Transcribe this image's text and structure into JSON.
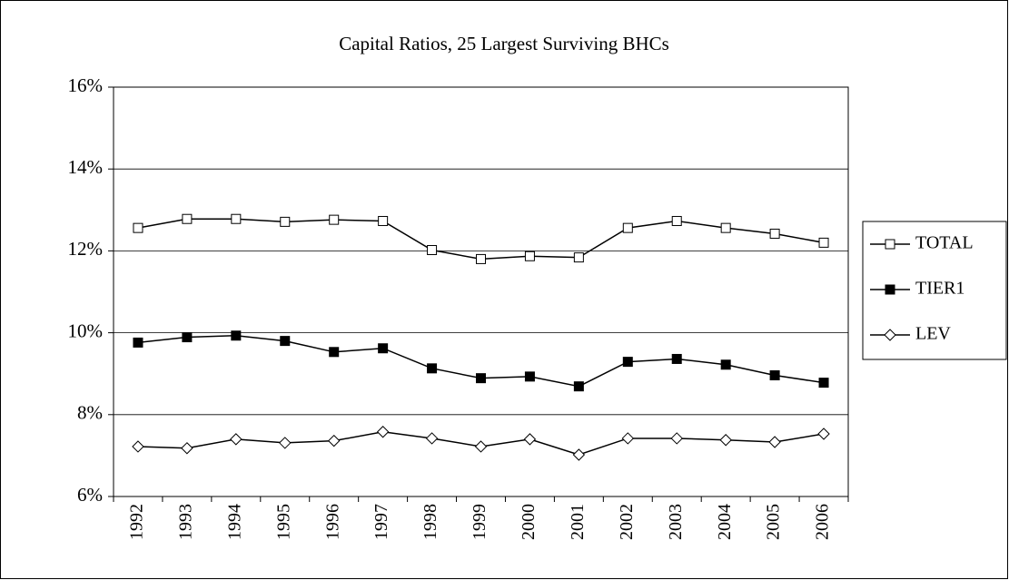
{
  "chart_data": {
    "type": "line",
    "title": "Capital Ratios, 25 Largest Surviving BHCs",
    "categories": [
      "1992",
      "1993",
      "1994",
      "1995",
      "1996",
      "1997",
      "1998",
      "1999",
      "2000",
      "2001",
      "2002",
      "2003",
      "2004",
      "2005",
      "2006"
    ],
    "series": [
      {
        "name": "TOTAL",
        "color": "#000000",
        "marker": "square-open",
        "values": [
          12.56,
          12.78,
          12.78,
          12.71,
          12.76,
          12.73,
          12.02,
          11.8,
          11.87,
          11.84,
          12.56,
          12.73,
          12.56,
          12.42,
          12.2
        ]
      },
      {
        "name": "TIER1",
        "color": "#000000",
        "marker": "square-filled",
        "values": [
          9.76,
          9.89,
          9.93,
          9.8,
          9.53,
          9.62,
          9.13,
          8.89,
          8.93,
          8.69,
          9.29,
          9.36,
          9.22,
          8.96,
          8.78
        ]
      },
      {
        "name": "LEV",
        "color": "#000000",
        "marker": "diamond-open",
        "values": [
          7.22,
          7.18,
          7.4,
          7.31,
          7.36,
          7.58,
          7.42,
          7.22,
          7.4,
          7.02,
          7.42,
          7.42,
          7.38,
          7.33,
          7.53
        ]
      }
    ],
    "ylim": [
      6,
      16
    ],
    "yticks": [
      {
        "value": 6,
        "label": "6%"
      },
      {
        "value": 8,
        "label": "8%"
      },
      {
        "value": 10,
        "label": "10%"
      },
      {
        "value": 12,
        "label": "12%"
      },
      {
        "value": 14,
        "label": "14%"
      },
      {
        "value": 16,
        "label": "16%"
      }
    ],
    "grid": true,
    "legend": "right"
  }
}
